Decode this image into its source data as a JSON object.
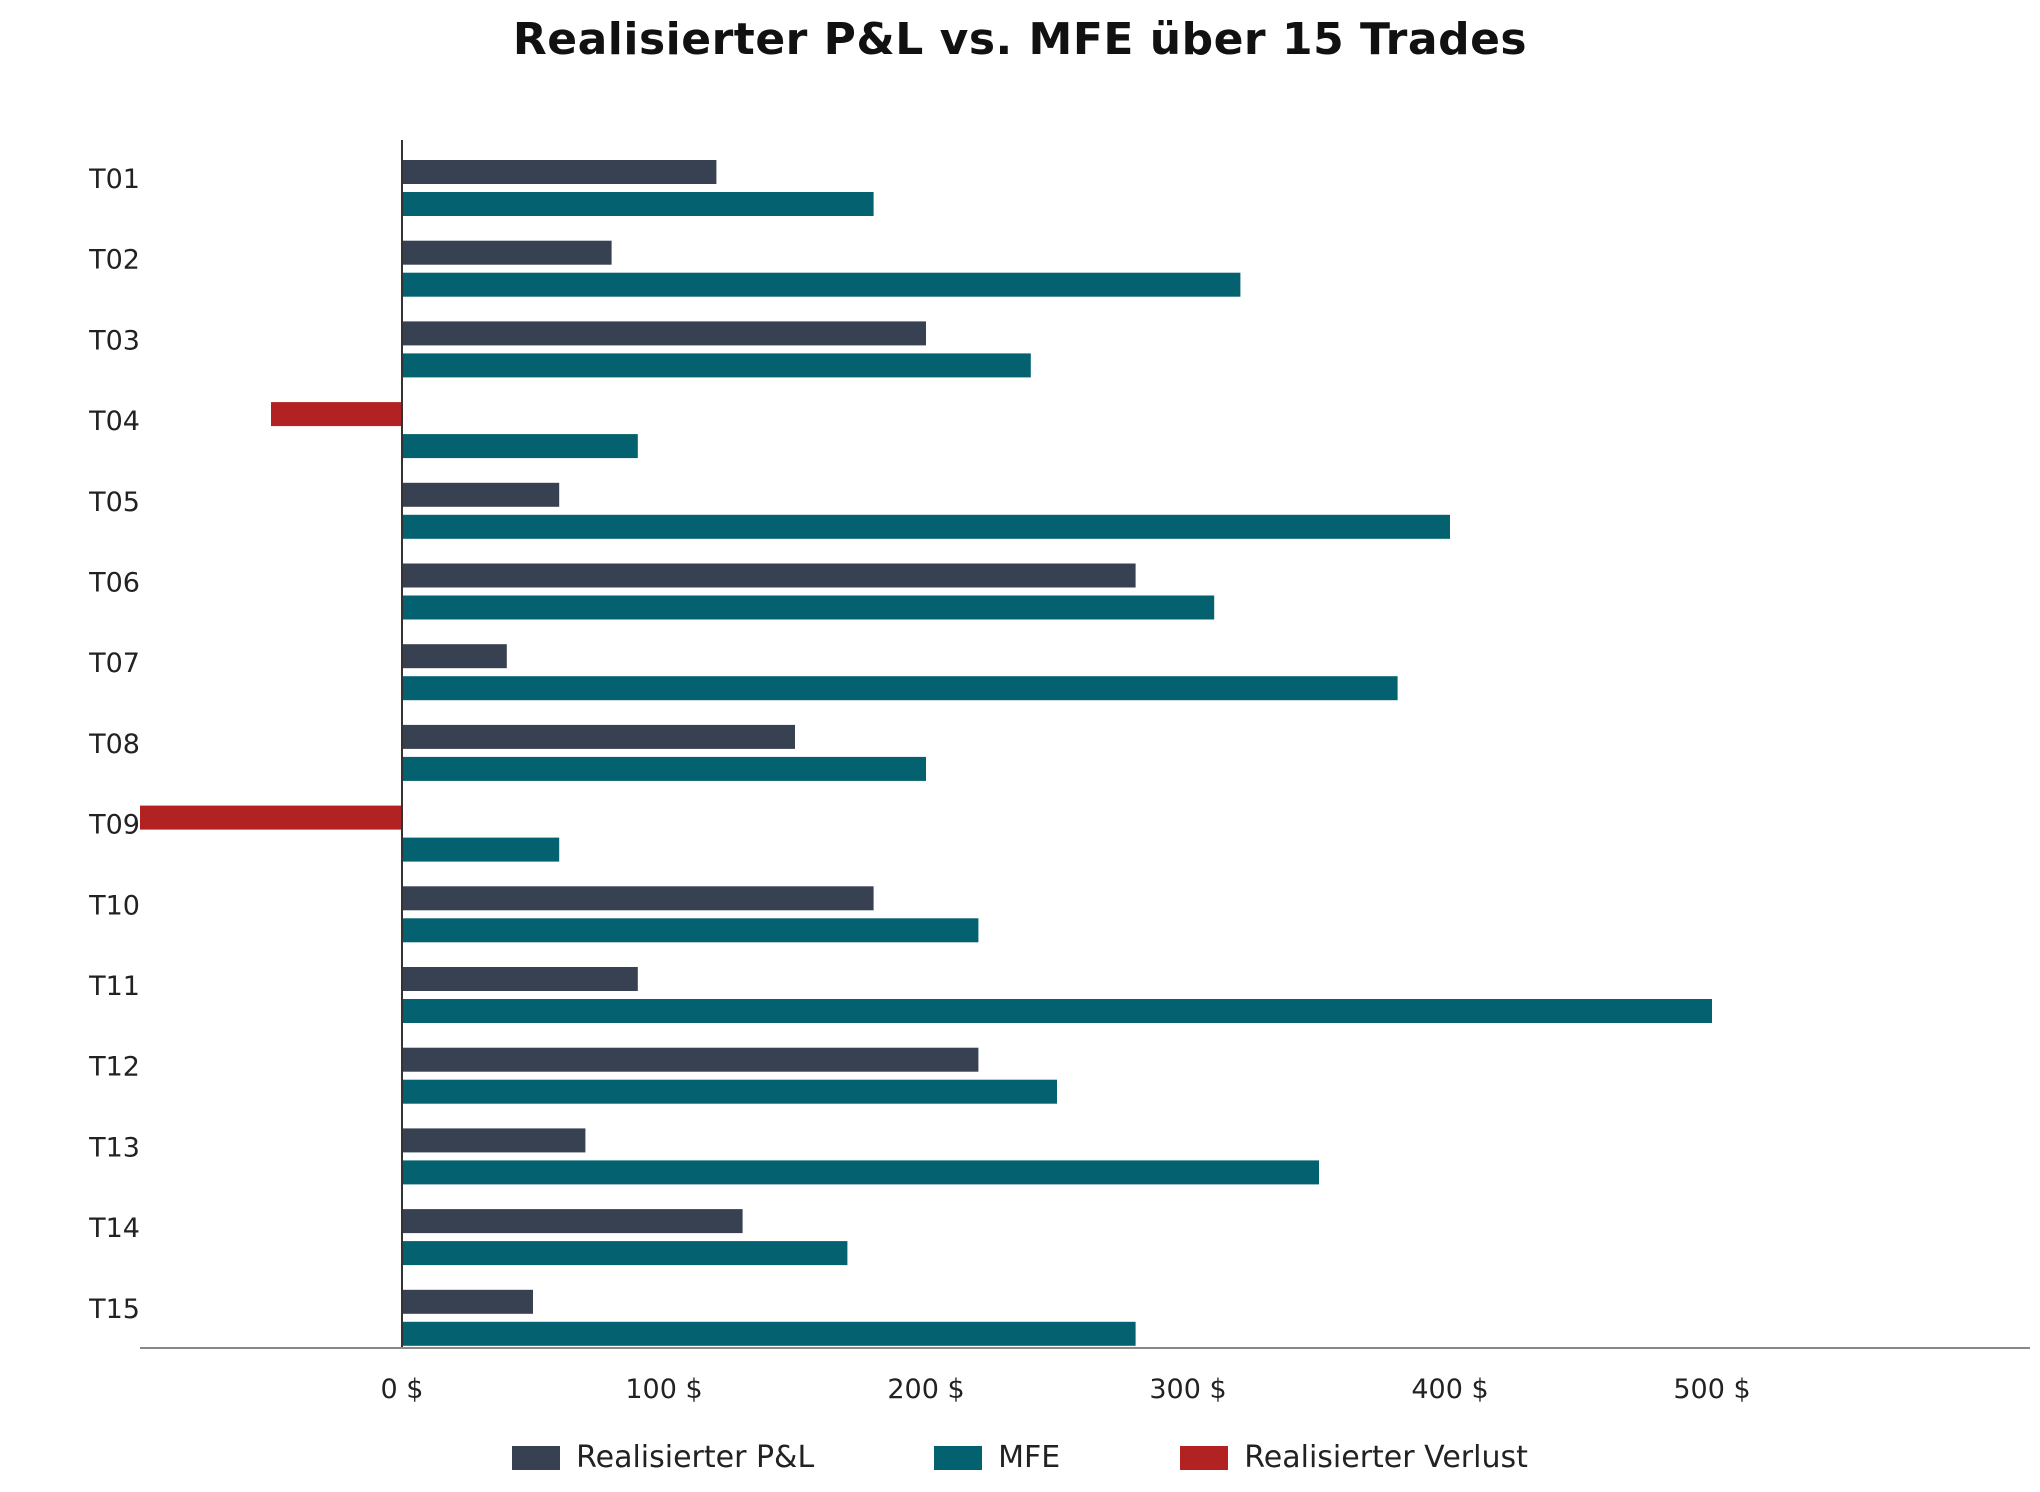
{
  "chart_data": {
    "type": "bar",
    "orientation": "horizontal",
    "title": "Realisierter P&L vs. MFE über 15 Trades",
    "categories": [
      "T01",
      "T02",
      "T03",
      "T04",
      "T05",
      "T06",
      "T07",
      "T08",
      "T09",
      "T10",
      "T11",
      "T12",
      "T13",
      "T14",
      "T15"
    ],
    "series": [
      {
        "name": "Realisierter P&L",
        "values": [
          120,
          80,
          200,
          -50,
          60,
          280,
          40,
          150,
          -100,
          180,
          90,
          220,
          70,
          130,
          50
        ]
      },
      {
        "name": "MFE",
        "values": [
          180,
          320,
          240,
          90,
          400,
          310,
          380,
          200,
          60,
          220,
          500,
          250,
          350,
          170,
          280
        ]
      }
    ],
    "loss_series_name": "Realisierter Verlust",
    "colors": {
      "pnl": "#374151",
      "mfe": "#036170",
      "loss": "#B22222",
      "axis": "#888888"
    },
    "xlim": [
      -100,
      620
    ],
    "xticks": [
      0,
      100,
      200,
      300,
      400,
      500
    ],
    "xtick_labels": [
      "0 $",
      "100 $",
      "200 $",
      "300 $",
      "400 $",
      "500 $"
    ],
    "xlabel": "",
    "ylabel": "",
    "grid": false,
    "legend_position": "bottom-center"
  },
  "legend": {
    "pnl_label": "Realisierter P&L",
    "mfe_label": "MFE",
    "loss_label": "Realisierter Verlust"
  }
}
